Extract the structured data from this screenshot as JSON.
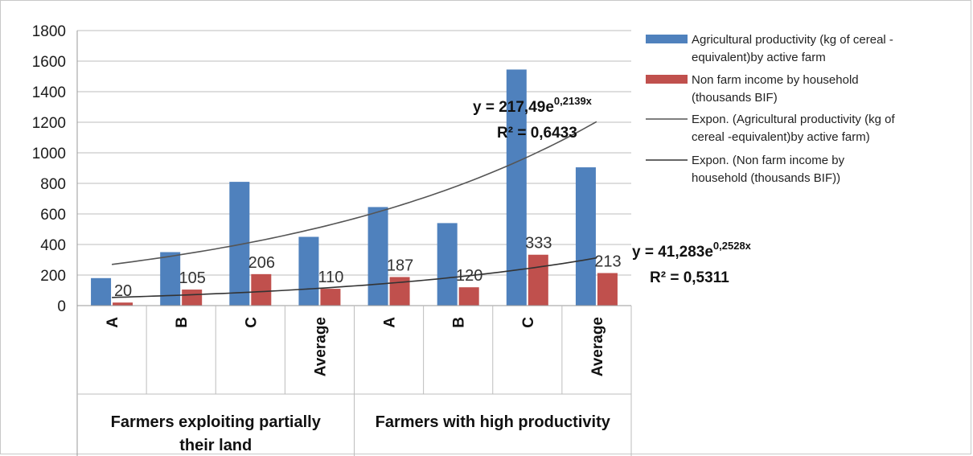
{
  "chart_data": {
    "type": "bar",
    "ylim": [
      0,
      1800
    ],
    "yticks": [
      "0",
      "200",
      "400",
      "600",
      "800",
      "1000",
      "1200",
      "1400",
      "1600",
      "1800"
    ],
    "grid": true,
    "legend_position": "right",
    "groups": [
      {
        "label_lines": [
          "Farmers exploiting partially",
          "their land"
        ],
        "categories": [
          "A",
          "B",
          "C",
          "Average"
        ]
      },
      {
        "label_lines": [
          "Farmers with high productivity"
        ],
        "categories": [
          "A",
          "B",
          "C",
          "Average"
        ]
      }
    ],
    "categories": [
      "A",
      "B",
      "C",
      "Average",
      "A",
      "B",
      "C",
      "Average"
    ],
    "series": [
      {
        "name": "Agricultural productivity (kg of cereal -equivalent)by active farm",
        "color": "#4f81bd",
        "values": [
          180,
          350,
          810,
          450,
          645,
          540,
          1545,
          905
        ]
      },
      {
        "name": "Non farm income by household (thousands BIF)",
        "color": "#c0504d",
        "values": [
          20,
          105,
          206,
          110,
          187,
          120,
          333,
          213
        ],
        "data_labels": [
          "20",
          "105",
          "206",
          "110",
          "187",
          "120",
          "333",
          "213"
        ]
      }
    ],
    "trendlines": [
      {
        "type": "exponential",
        "legend": "Expon. (Agricultural productivity (kg of cereal -equivalent)by active farm)",
        "color": "#555555",
        "a": 217.49,
        "b": 0.2139,
        "eq_prefix": "y = 217,49e",
        "eq_exp": "0,2139x",
        "r2": "R² = 0,6433"
      },
      {
        "type": "exponential",
        "legend": "Expon. (Non farm income by household (thousands BIF))",
        "color": "#333333",
        "a": 41.283,
        "b": 0.2528,
        "eq_prefix": "y = 41,283e",
        "eq_exp": "0,2528x",
        "r2": "R² = 0,5311"
      }
    ],
    "legend": [
      {
        "kind": "box",
        "color": "#4f81bd",
        "lines": [
          "Agricultural productivity (kg of cereal -",
          "equivalent)by active farm"
        ]
      },
      {
        "kind": "box",
        "color": "#c0504d",
        "lines": [
          "Non farm income by household",
          "(thousands BIF)"
        ]
      },
      {
        "kind": "line",
        "color": "#555555",
        "lines": [
          "Expon. (Agricultural productivity (kg of",
          "cereal -equivalent)by active farm)"
        ]
      },
      {
        "kind": "line",
        "color": "#333333",
        "lines": [
          "Expon. (Non farm income by",
          "household (thousands BIF))"
        ]
      }
    ]
  }
}
